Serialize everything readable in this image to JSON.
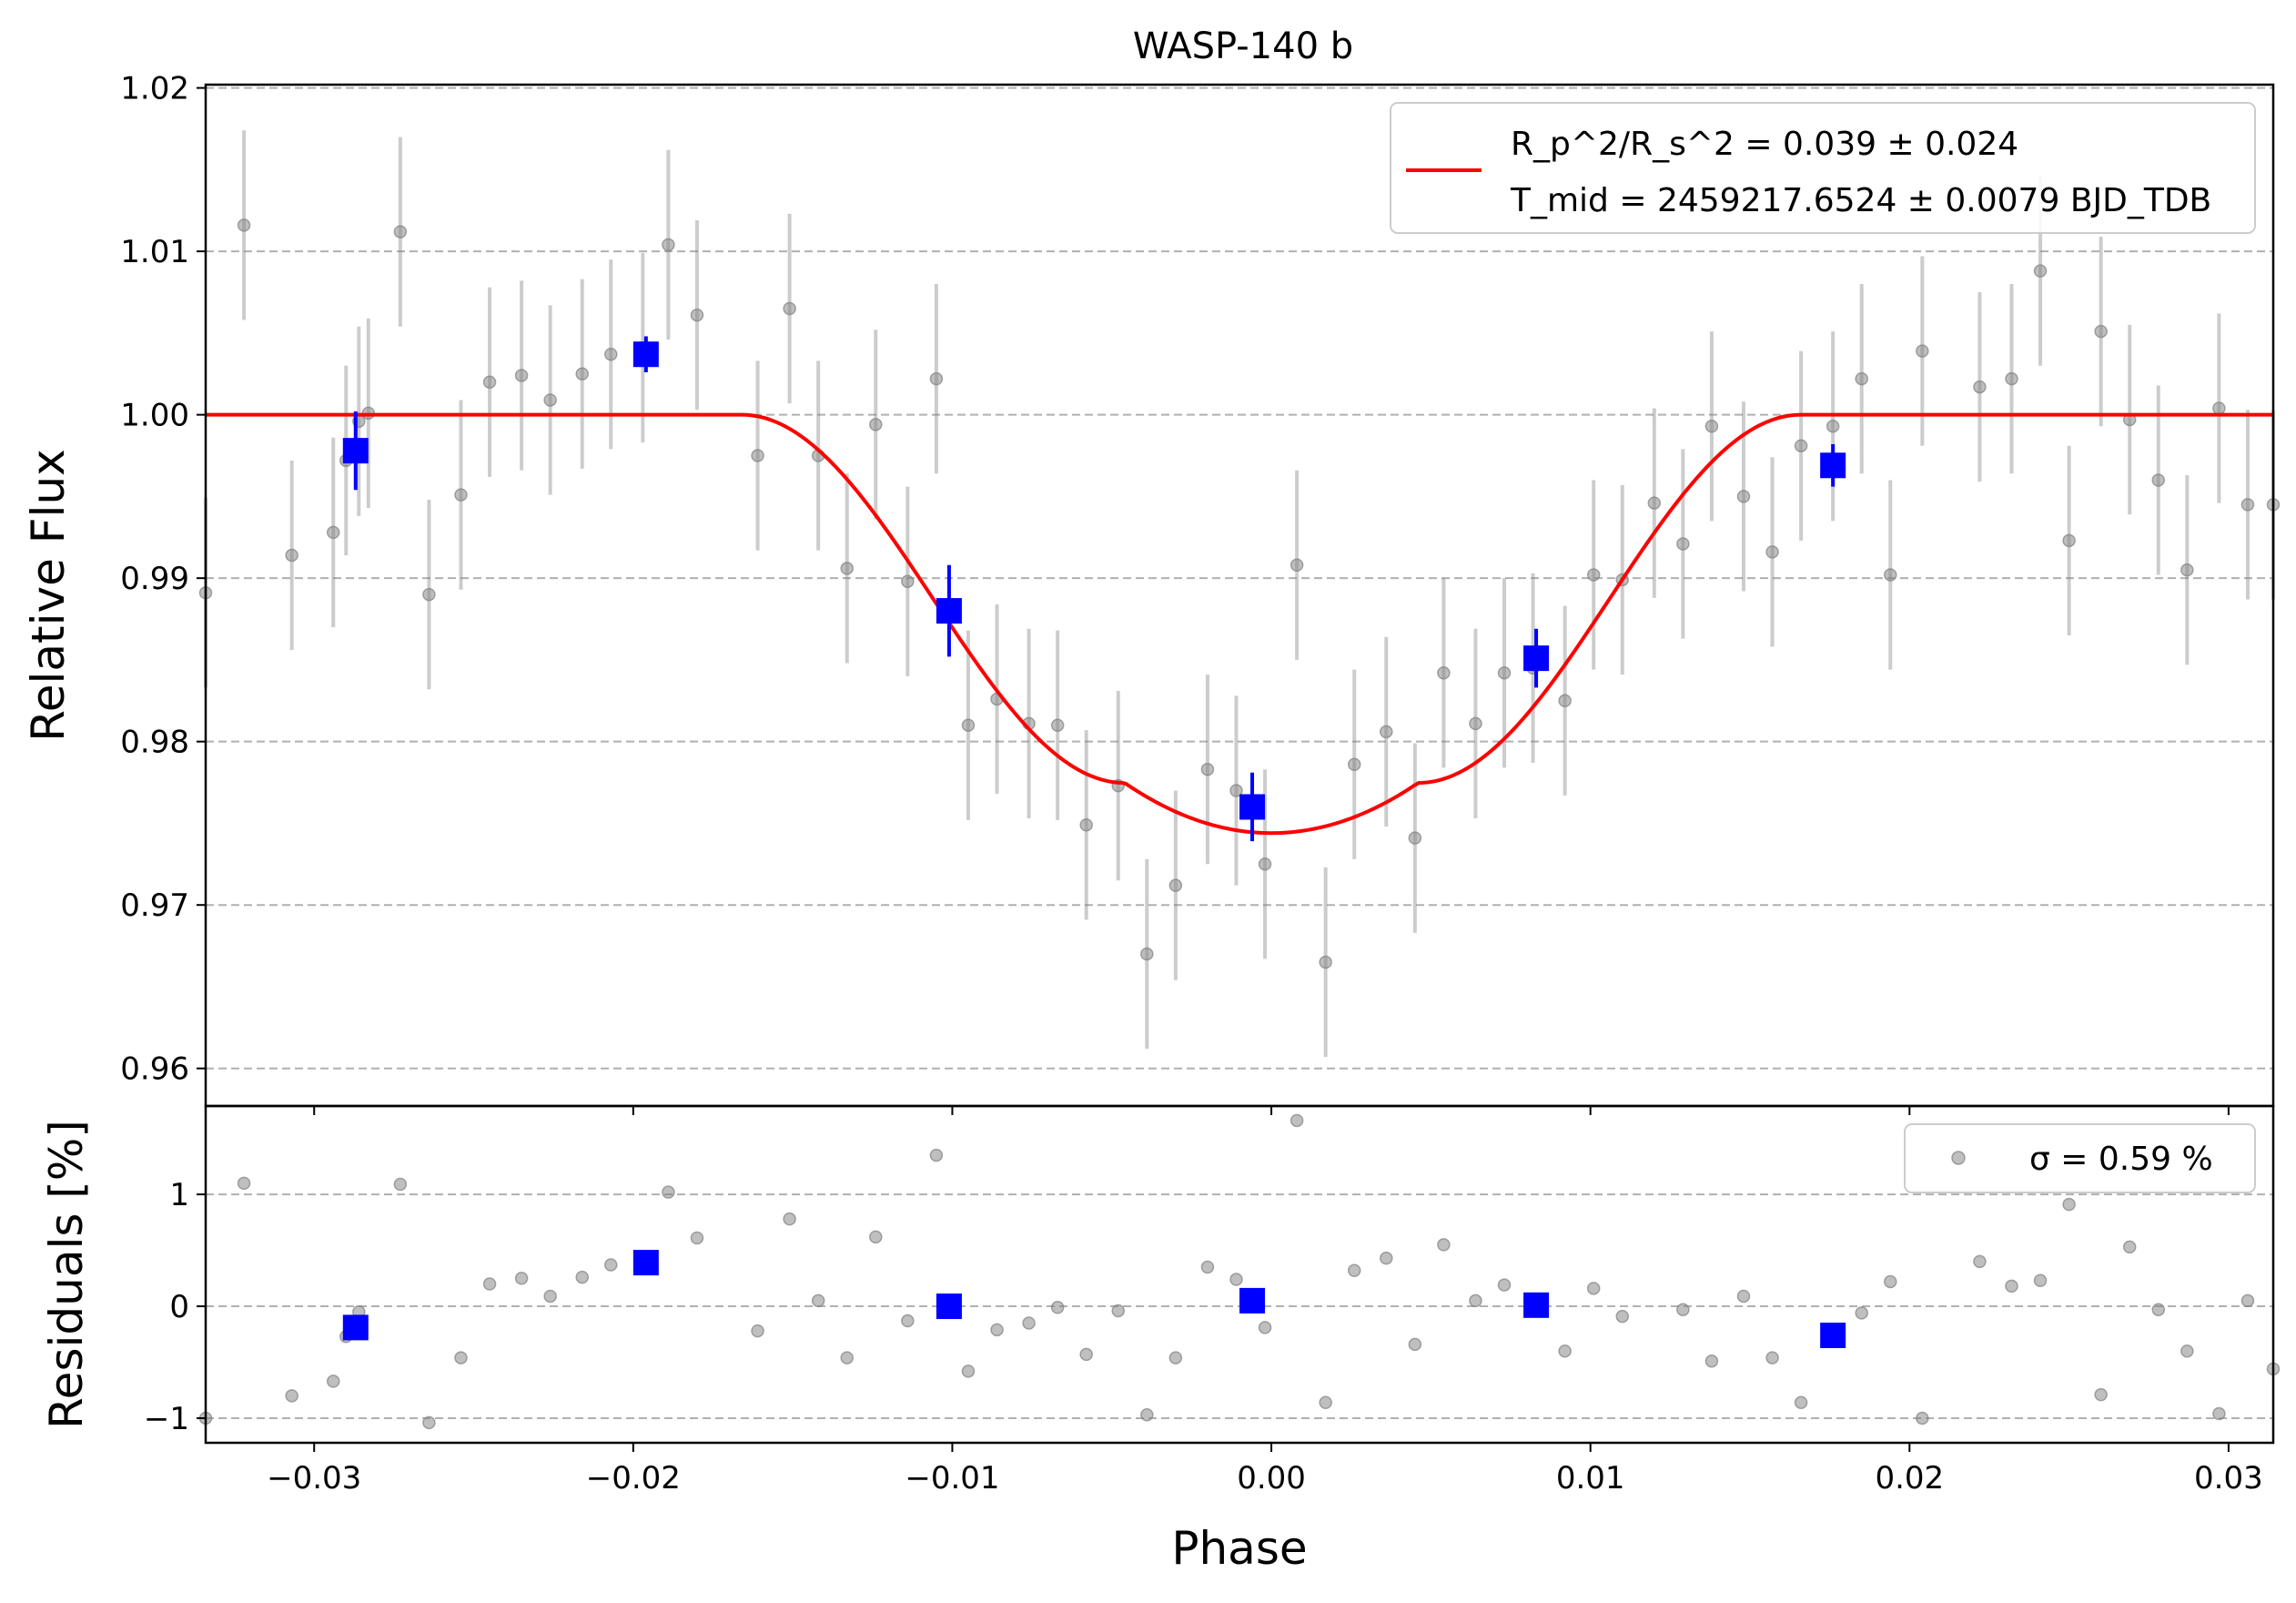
{
  "chart_data": [
    {
      "type": "scatter",
      "title": "WASP-140 b",
      "xlabel": "",
      "ylabel": "Relative Flux",
      "xlim": [
        -0.0334,
        0.0314
      ],
      "ylim": [
        0.9577,
        1.0202
      ],
      "yticks": [
        0.96,
        0.97,
        0.98,
        0.99,
        1.0,
        1.01,
        1.02
      ],
      "ytick_labels": [
        "0.96",
        "0.97",
        "0.98",
        "0.99",
        "1.00",
        "1.01",
        "1.02"
      ],
      "grid": "y dashed",
      "legend_position": "upper-right",
      "legend": {
        "line1": "R_p^2/R_s^2 = 0.039 ± 0.024",
        "line2": "T_mid = 2459217.6524 ± 0.0079 BJD_TDB",
        "line_color": "#ff0000"
      },
      "model": {
        "depth": 0.0256,
        "t_ingress_start": -0.0166,
        "t_ingress_end": -0.0046,
        "t_egress_start": 0.0046,
        "t_egress_end": 0.0166,
        "color": "#ff0000"
      },
      "series": [
        {
          "color": "#808080",
          "error": 0.0058,
          "x": [
            -0.0334,
            -0.0322,
            -0.0307,
            -0.0294,
            -0.029,
            -0.0286,
            -0.0283,
            -0.0273,
            -0.0264,
            -0.0254,
            -0.0245,
            -0.0235,
            -0.0226,
            -0.0216,
            -0.0207,
            -0.0197,
            -0.0189,
            -0.018,
            -0.0161,
            -0.0151,
            -0.0142,
            -0.0133,
            -0.0124,
            -0.0114,
            -0.0105,
            -0.0095,
            -0.0086,
            -0.0076,
            -0.0067,
            -0.0058,
            -0.0048,
            -0.0039,
            -0.003,
            -0.002,
            -0.0011,
            -0.0002,
            0.0008,
            0.0017,
            0.0026,
            0.0036,
            0.0045,
            0.0054,
            0.0064,
            0.0073,
            0.0082,
            0.0092,
            0.0101,
            0.011,
            0.012,
            0.0129,
            0.0138,
            0.0148,
            0.0157,
            0.0166,
            0.0176,
            0.0185,
            0.0194,
            0.0204,
            0.0222,
            0.0232,
            0.0241,
            0.025,
            0.026,
            0.0269,
            0.0278,
            0.0287,
            0.0297,
            0.0306,
            0.0314
          ],
          "y": [
            0.9891,
            1.0116,
            0.9914,
            0.9928,
            0.9972,
            0.9996,
            1.0001,
            1.0112,
            0.989,
            0.9951,
            1.002,
            1.0024,
            1.0009,
            1.0025,
            1.0037,
            1.0041,
            1.0104,
            1.0061,
            0.9975,
            1.0065,
            0.9975,
            0.9906,
            0.9994,
            0.9898,
            1.0022,
            0.981,
            0.9826,
            0.9811,
            0.981,
            0.9749,
            0.9773,
            0.967,
            0.9712,
            0.9783,
            0.977,
            0.9725,
            0.9908,
            0.9665,
            0.9786,
            0.9806,
            0.9741,
            0.9842,
            0.9811,
            0.9842,
            0.9845,
            0.9825,
            0.9902,
            0.9899,
            0.9946,
            0.9921,
            0.9993,
            0.995,
            0.9916,
            0.9981,
            0.9993,
            1.0022,
            0.9902,
            1.0039,
            1.0017,
            1.0022,
            1.0088,
            0.9923,
            1.0051,
            0.9997,
            0.996,
            0.9905,
            1.0004,
            0.9945,
            0.9945
          ]
        },
        {
          "color": "#0000ff",
          "x": [
            -0.0287,
            -0.0196,
            -0.0101,
            -0.0006,
            0.0083,
            0.0176
          ],
          "y": [
            0.9978,
            1.0037,
            0.988,
            0.976,
            0.9851,
            0.9969
          ],
          "err": [
            0.0024,
            0.0011,
            0.0028,
            0.0021,
            0.0018,
            0.0013
          ]
        }
      ]
    },
    {
      "type": "scatter",
      "xlabel": "Phase",
      "ylabel": "Residuals [%]",
      "xlim": [
        -0.0334,
        0.0314
      ],
      "ylim": [
        -1.22,
        1.79
      ],
      "yticks": [
        -1,
        0,
        1
      ],
      "ytick_labels": [
        "−1",
        "0",
        "1"
      ],
      "xticks": [
        -0.03,
        -0.02,
        -0.01,
        0.0,
        0.01,
        0.02,
        0.03
      ],
      "xtick_labels": [
        "−0.03",
        "−0.02",
        "−0.01",
        "0.00",
        "0.01",
        "0.02",
        "0.03"
      ],
      "grid": "y dashed",
      "legend_position": "upper-right",
      "legend": {
        "label": "σ = 0.59 %"
      },
      "series": [
        {
          "color": "#808080",
          "x": [
            -0.0334,
            -0.0322,
            -0.0307,
            -0.0294,
            -0.029,
            -0.0286,
            -0.0273,
            -0.0264,
            -0.0254,
            -0.0245,
            -0.0235,
            -0.0226,
            -0.0216,
            -0.0207,
            -0.0189,
            -0.018,
            -0.0161,
            -0.0151,
            -0.0142,
            -0.0133,
            -0.0124,
            -0.0114,
            -0.0105,
            -0.0095,
            -0.0086,
            -0.0076,
            -0.0067,
            -0.0058,
            -0.0048,
            -0.0039,
            -0.003,
            -0.002,
            -0.0011,
            -0.0002,
            0.0008,
            0.0017,
            0.0026,
            0.0036,
            0.0045,
            0.0054,
            0.0064,
            0.0073,
            0.0092,
            0.0101,
            0.011,
            0.0129,
            0.0138,
            0.0148,
            0.0157,
            0.0166,
            0.0185,
            0.0194,
            0.0204,
            0.0222,
            0.0232,
            0.0241,
            0.025,
            0.026,
            0.0269,
            0.0278,
            0.0287,
            0.0297,
            0.0306,
            0.0314
          ],
          "y": [
            -1.0,
            1.1,
            -0.8,
            -0.67,
            -0.27,
            -0.05,
            1.09,
            -1.04,
            -0.46,
            0.2,
            0.25,
            0.09,
            0.26,
            0.37,
            1.02,
            0.61,
            -0.22,
            0.78,
            0.05,
            -0.46,
            0.62,
            -0.13,
            1.35,
            -0.58,
            -0.21,
            -0.15,
            -0.01,
            -0.43,
            -0.04,
            -0.97,
            -0.46,
            0.35,
            0.24,
            -0.19,
            1.66,
            -0.86,
            0.32,
            0.43,
            -0.34,
            0.55,
            0.05,
            0.19,
            -0.4,
            0.16,
            -0.09,
            -0.03,
            -0.49,
            0.09,
            -0.46,
            -0.86,
            -0.06,
            0.22,
            -1.0,
            0.4,
            0.18,
            0.23,
            0.91,
            -0.79,
            0.53,
            -0.03,
            -0.4,
            -0.96,
            0.05,
            -0.56
          ]
        },
        {
          "color": "#0000ff",
          "x": [
            -0.0287,
            -0.0196,
            -0.0101,
            -0.0006,
            0.0083,
            0.0176
          ],
          "y": [
            -0.19,
            0.39,
            0.0,
            0.05,
            0.01,
            -0.26
          ]
        }
      ]
    }
  ]
}
